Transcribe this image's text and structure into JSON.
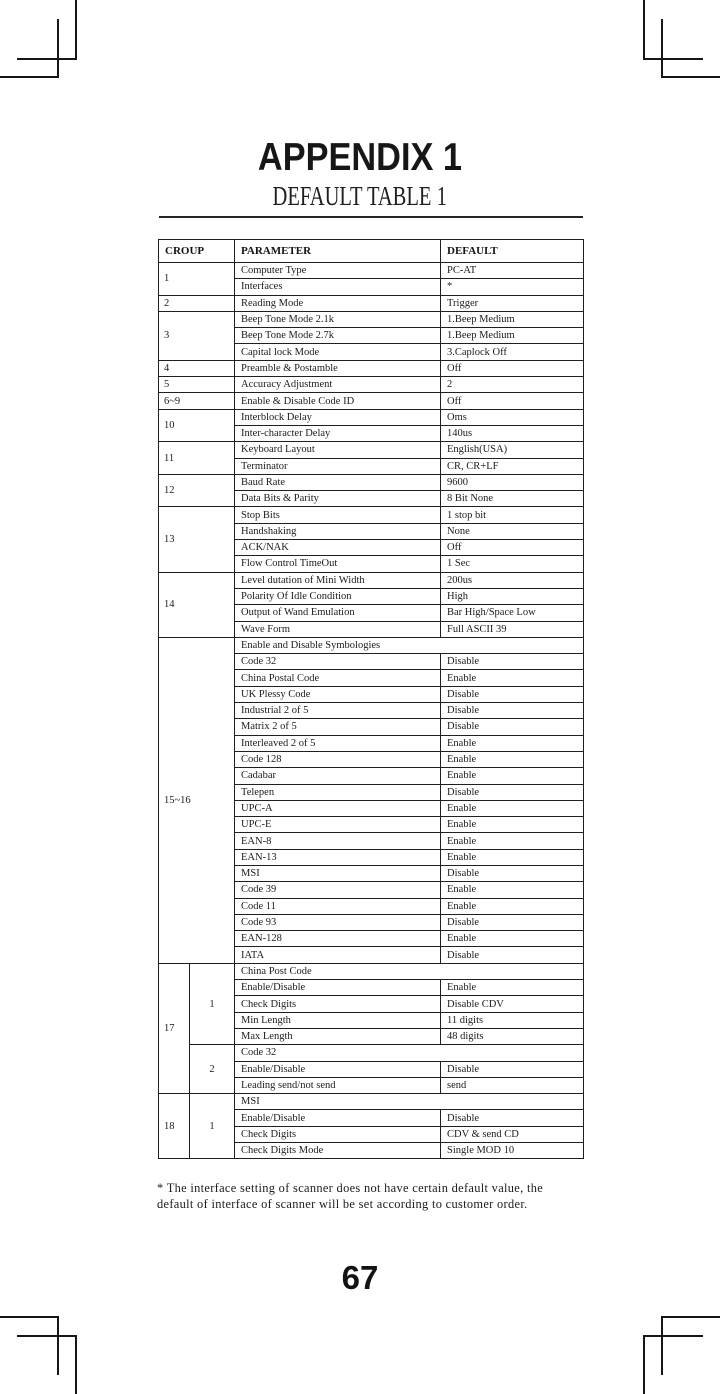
{
  "page": {
    "title": "APPENDIX 1",
    "subtitle": "DEFAULT TABLE 1",
    "footnote_lines": [
      "* The interface setting of scanner does not have certain default value, the",
      "default of interface of scanner will be set according to customer order."
    ],
    "page_number": "67"
  },
  "colors": {
    "ink": "#1b1b1b",
    "border": "#1f1f1f",
    "background": "#ffffff"
  },
  "table": {
    "headers": [
      "CROUP",
      "PARAMETER",
      "DEFAULT"
    ],
    "groups": [
      {
        "group": "1",
        "rows": [
          [
            "Computer Type",
            "PC-AT"
          ],
          [
            "Interfaces",
            "*"
          ]
        ]
      },
      {
        "group": "2",
        "rows": [
          [
            "Reading Mode",
            "Trigger"
          ]
        ]
      },
      {
        "group": "3",
        "rows": [
          [
            "Beep Tone Mode 2.1k",
            "1.Beep Medium"
          ],
          [
            "Beep Tone Mode 2.7k",
            "1.Beep Medium"
          ],
          [
            "Capital lock Mode",
            "3.Caplock Off"
          ]
        ]
      },
      {
        "group": "4",
        "rows": [
          [
            "Preamble & Postamble",
            "Off"
          ]
        ]
      },
      {
        "group": "5",
        "rows": [
          [
            "Accuracy Adjustment",
            "2"
          ]
        ]
      },
      {
        "group": "6~9",
        "rows": [
          [
            "Enable & Disable Code ID",
            "Off"
          ]
        ]
      },
      {
        "group": "10",
        "rows": [
          [
            "Interblock Delay",
            "Oms"
          ],
          [
            "Inter-character Delay",
            "140us"
          ]
        ]
      },
      {
        "group": "11",
        "rows": [
          [
            "Keyboard Layout",
            "English(USA)"
          ],
          [
            "Terminator",
            "CR, CR+LF"
          ]
        ]
      },
      {
        "group": "12",
        "rows": [
          [
            "Baud Rate",
            "9600"
          ],
          [
            "Data Bits & Parity",
            "8 Bit None"
          ]
        ]
      },
      {
        "group": "13",
        "rows": [
          [
            "Stop Bits",
            "1 stop bit"
          ],
          [
            "Handshaking",
            "None"
          ],
          [
            "ACK/NAK",
            "Off"
          ],
          [
            "Flow Control TimeOut",
            "1 Sec"
          ]
        ]
      },
      {
        "group": "14",
        "rows": [
          [
            "Level dutation of Mini Width",
            "200us"
          ],
          [
            "Polarity Of Idle Condition",
            "High"
          ],
          [
            "Output of Wand Emulation",
            "Bar High/Space Low"
          ],
          [
            "Wave Form",
            "Full ASCII 39"
          ]
        ]
      },
      {
        "group": "15~16",
        "rows": [
          [
            "Enable and Disable Symbologies",
            null
          ],
          [
            "Code 32",
            "Disable"
          ],
          [
            "China Postal Code",
            "Enable"
          ],
          [
            "UK Plessy Code",
            "Disable"
          ],
          [
            "Industrial 2 of 5",
            "Disable"
          ],
          [
            "Matrix 2 of 5",
            "Disable"
          ],
          [
            "Interleaved 2 of 5",
            "Enable"
          ],
          [
            "Code 128",
            "Enable"
          ],
          [
            "Cadabar",
            "Enable"
          ],
          [
            "Telepen",
            "Disable"
          ],
          [
            "UPC-A",
            "Enable"
          ],
          [
            "UPC-E",
            "Enable"
          ],
          [
            "EAN-8",
            "Enable"
          ],
          [
            "EAN-13",
            "Enable"
          ],
          [
            "MSI",
            "Disable"
          ],
          [
            "Code 39",
            "Enable"
          ],
          [
            "Code 11",
            "Enable"
          ],
          [
            "Code 93",
            "Disable"
          ],
          [
            "EAN-128",
            "Enable"
          ],
          [
            "IATA",
            "Disable"
          ]
        ]
      },
      {
        "group": "17",
        "subgroups": [
          {
            "label": "1",
            "rows": [
              [
                "China Post Code",
                null
              ],
              [
                "Enable/Disable",
                "Enable"
              ],
              [
                "Check Digits",
                "Disable CDV"
              ],
              [
                "Min Length",
                "11 digits"
              ],
              [
                "Max Length",
                "48 digits"
              ]
            ]
          },
          {
            "label": "2",
            "rows": [
              [
                "Code 32",
                null
              ],
              [
                "Enable/Disable",
                "Disable"
              ],
              [
                "Leading send/not send",
                "send"
              ]
            ]
          }
        ]
      },
      {
        "group": "18",
        "subgroups": [
          {
            "label": "1",
            "rows": [
              [
                "MSI",
                null
              ],
              [
                "Enable/Disable",
                "Disable"
              ],
              [
                "Check Digits",
                "CDV & send CD"
              ],
              [
                "Check Digits Mode",
                "Single MOD 10"
              ]
            ]
          }
        ]
      }
    ]
  }
}
